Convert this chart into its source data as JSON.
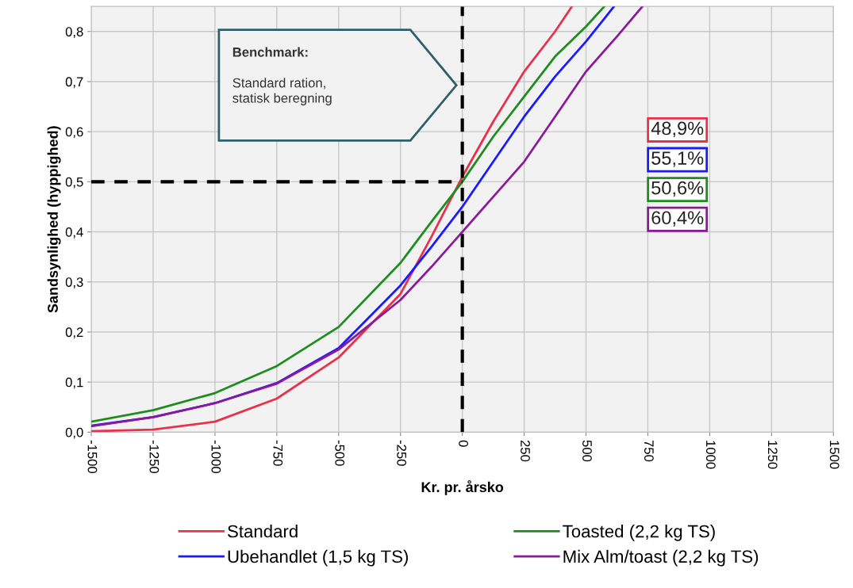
{
  "chart_data": {
    "type": "line",
    "xlabel": "Kr. pr. årsko",
    "ylabel": "Sandsynlighed (hyppighed)",
    "xlim": [
      -1500,
      1500
    ],
    "ylim": [
      0,
      0.85
    ],
    "xticks": [
      -1500,
      -1250,
      -1000,
      -750,
      -500,
      -250,
      0,
      250,
      500,
      750,
      1000,
      1250,
      1500
    ],
    "yticks": [
      {
        "value": 0,
        "label": "0,0"
      },
      {
        "value": 0.1,
        "label": "0,1"
      },
      {
        "value": 0.2,
        "label": "0,2"
      },
      {
        "value": 0.3,
        "label": "0,3"
      },
      {
        "value": 0.4,
        "label": "0,4"
      },
      {
        "value": 0.5,
        "label": "0,5"
      },
      {
        "value": 0.6,
        "label": "0,6"
      },
      {
        "value": 0.7,
        "label": "0,7"
      },
      {
        "value": 0.8,
        "label": "0,8"
      }
    ],
    "grid": true,
    "legend": "bottom",
    "marker": "none",
    "line_style": "solid",
    "series": [
      {
        "name": "Standard",
        "color": "#e8314a",
        "x": [
          -1500,
          -1250,
          -1000,
          -750,
          -500,
          -250,
          -125,
          0,
          125,
          250,
          375,
          443
        ],
        "values": [
          0.002,
          0.005,
          0.021,
          0.067,
          0.149,
          0.276,
          0.39,
          0.51,
          0.62,
          0.72,
          0.8,
          0.85
        ]
      },
      {
        "name": "Ubehandlet (1,5 kg TS)",
        "color": "#1a1aff",
        "x": [
          -1500,
          -1250,
          -1000,
          -750,
          -500,
          -250,
          -125,
          0,
          125,
          250,
          375,
          500,
          613
        ],
        "values": [
          0.013,
          0.03,
          0.058,
          0.098,
          0.168,
          0.293,
          0.37,
          0.45,
          0.54,
          0.63,
          0.71,
          0.78,
          0.85
        ]
      },
      {
        "name": "Toasted (2,2 kg TS)",
        "color": "#1e8c1e",
        "x": [
          -1500,
          -1250,
          -1000,
          -750,
          -500,
          -250,
          -125,
          0,
          125,
          250,
          375,
          500,
          574
        ],
        "values": [
          0.021,
          0.044,
          0.078,
          0.132,
          0.21,
          0.338,
          0.42,
          0.5,
          0.59,
          0.67,
          0.75,
          0.81,
          0.85
        ]
      },
      {
        "name": "Mix Alm/toast (2,2 kg TS)",
        "color": "#8b1a9a",
        "x": [
          -1500,
          -1250,
          -1000,
          -750,
          -500,
          -250,
          -125,
          0,
          125,
          250,
          375,
          500,
          625,
          728
        ],
        "values": [
          0.012,
          0.03,
          0.058,
          0.097,
          0.165,
          0.264,
          0.33,
          0.4,
          0.47,
          0.54,
          0.63,
          0.72,
          0.79,
          0.85
        ]
      }
    ],
    "ref_lines": [
      {
        "axis": "x",
        "value": 0,
        "color": "#000000",
        "line_style": "dashed"
      },
      {
        "axis": "y",
        "value": 0.5,
        "color": "#000000",
        "line_style": "dashed"
      }
    ],
    "annotations": [
      "Benchmark:\nStandard ration,\nstatisk beregning",
      "48,9%",
      "55,1%",
      "50,6%",
      "60,4%"
    ]
  }
}
